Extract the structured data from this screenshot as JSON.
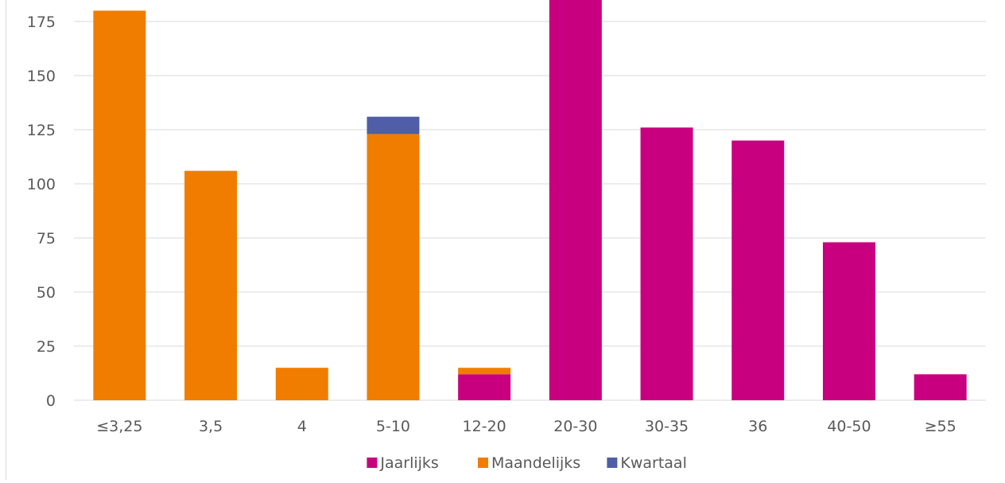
{
  "chart_data": {
    "type": "bar",
    "stacked": true,
    "categories": [
      "≤3,25",
      "3,5",
      "4",
      "5-10",
      "12-20",
      "20-30",
      "30-35",
      "36",
      "40-50",
      "≥55"
    ],
    "series": [
      {
        "name": "Jaarlijks",
        "color": "#c8007f",
        "values": [
          0,
          0,
          0,
          0,
          12,
          185,
          126,
          120,
          73,
          12
        ]
      },
      {
        "name": "Maandelijks",
        "color": "#f07d00",
        "values": [
          180,
          106,
          15,
          123,
          3,
          0,
          0,
          0,
          0,
          0
        ]
      },
      {
        "name": "Kwartaal",
        "color": "#4f5ea6",
        "values": [
          0,
          0,
          0,
          8,
          0,
          0,
          0,
          0,
          0,
          0
        ]
      }
    ],
    "yticks": [
      0,
      25,
      50,
      75,
      100,
      125,
      150,
      175
    ],
    "ylim": [
      0,
      185
    ],
    "grid": true,
    "legend_position": "bottom",
    "title": "",
    "xlabel": "",
    "ylabel": ""
  }
}
